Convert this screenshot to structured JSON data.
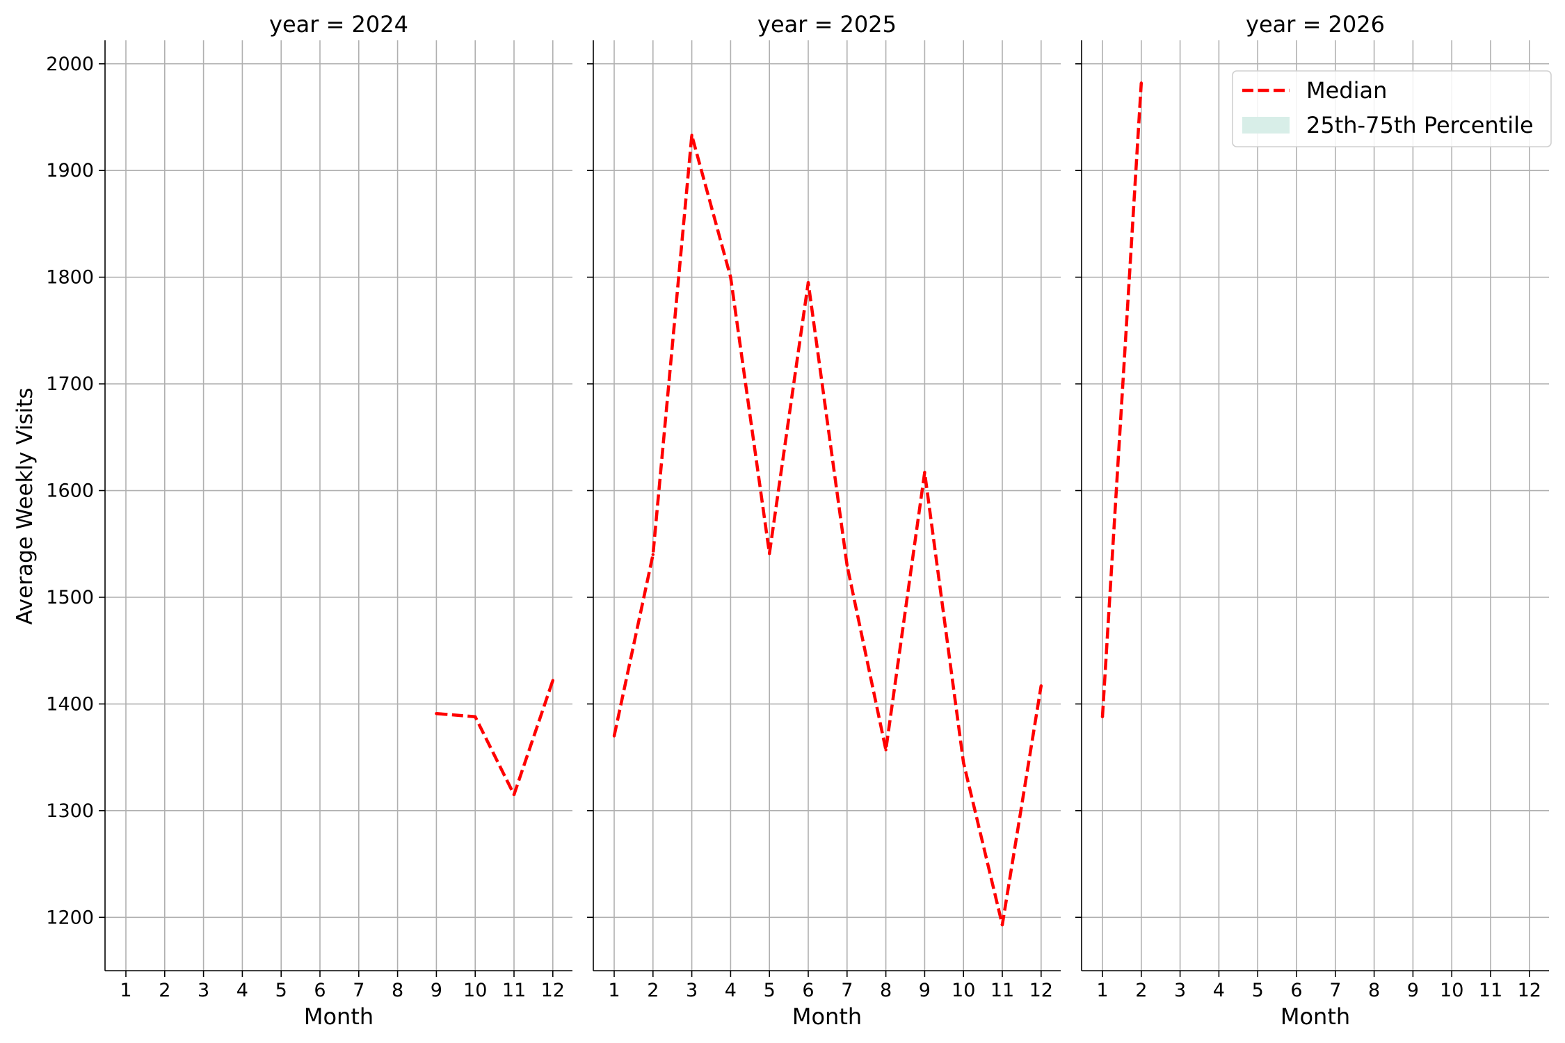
{
  "chart_data": {
    "type": "line",
    "ylabel": "Average Weekly Visits",
    "ylim": [
      1150,
      2022
    ],
    "yticks": [
      1200,
      1300,
      1400,
      1500,
      1600,
      1700,
      1800,
      1900,
      2000
    ],
    "xticks": [
      "1",
      "2",
      "3",
      "4",
      "5",
      "6",
      "7",
      "8",
      "9",
      "10",
      "11",
      "12"
    ],
    "grid": true,
    "legend": {
      "placement": "top-right",
      "entries": [
        {
          "label": "Median",
          "style": "dashed-line",
          "color": "#ff0000"
        },
        {
          "label": "25th-75th Percentile",
          "style": "band",
          "color": "#d8eee8"
        }
      ]
    },
    "panels": [
      {
        "title": "year = 2024",
        "xlabel": "Month",
        "series": [
          {
            "name": "Median",
            "x": [
              9,
              10,
              11,
              12
            ],
            "y": [
              1391,
              1388,
              1315,
              1422
            ]
          }
        ]
      },
      {
        "title": "year = 2025",
        "xlabel": "Month",
        "series": [
          {
            "name": "Median",
            "x": [
              1,
              2,
              3,
              4,
              5,
              6,
              7,
              8,
              9,
              10,
              11,
              12
            ],
            "y": [
              1370,
              1540,
              1933,
              1800,
              1541,
              1795,
              1530,
              1357,
              1617,
              1345,
              1193,
              1417
            ]
          }
        ]
      },
      {
        "title": "year = 2026",
        "xlabel": "Month",
        "series": [
          {
            "name": "Median",
            "x": [
              1,
              2
            ],
            "y": [
              1388,
              1982
            ]
          }
        ]
      }
    ]
  },
  "colors": {
    "median_line": "#ff0000",
    "percentile_band": "#d8eee8",
    "grid": "#b0b0b0",
    "axis": "#000000"
  }
}
